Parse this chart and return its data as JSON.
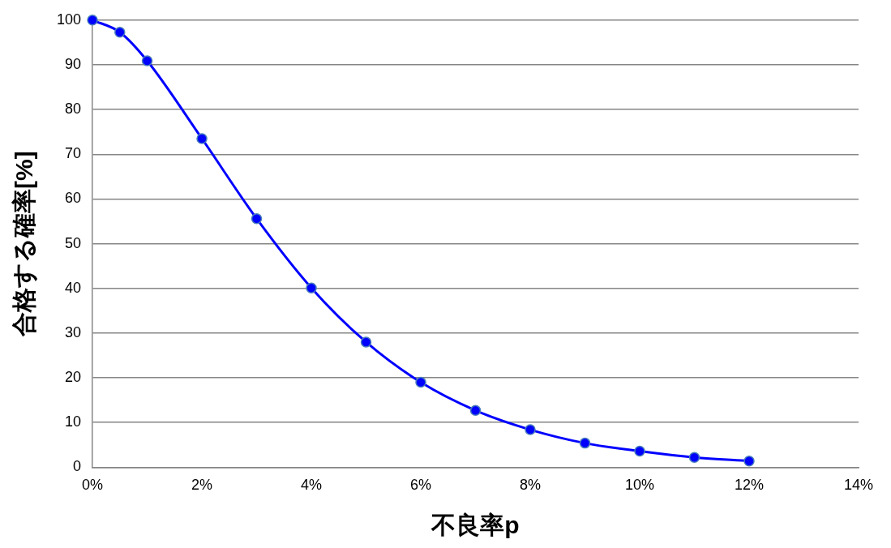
{
  "chart_data": {
    "type": "line",
    "xlabel": "不良率p",
    "ylabel": "合格する確率[%]",
    "x": [
      0,
      0.5,
      1,
      2,
      3,
      4,
      5,
      6,
      7,
      8,
      9,
      10,
      11,
      12
    ],
    "series": [
      {
        "color": "#0000ff",
        "values": [
          100,
          97.3,
          90.9,
          73.5,
          55.6,
          40.1,
          28.0,
          19.0,
          12.7,
          8.4,
          5.4,
          3.6,
          2.2,
          1.4
        ]
      }
    ],
    "xlim": [
      0,
      14
    ],
    "xticks": [
      {
        "value": 0,
        "label": "0%"
      },
      {
        "value": 2,
        "label": "2%"
      },
      {
        "value": 4,
        "label": "4%"
      },
      {
        "value": 6,
        "label": "6%"
      },
      {
        "value": 8,
        "label": "8%"
      },
      {
        "value": 10,
        "label": "10%"
      },
      {
        "value": 12,
        "label": "12%"
      },
      {
        "value": 14,
        "label": "14%"
      }
    ],
    "ylim": [
      0,
      100
    ],
    "yticks": [
      0,
      10,
      20,
      30,
      40,
      50,
      60,
      70,
      80,
      90,
      100
    ],
    "grid": "y",
    "legend": false,
    "marker": "circle",
    "line_style": "solid"
  }
}
